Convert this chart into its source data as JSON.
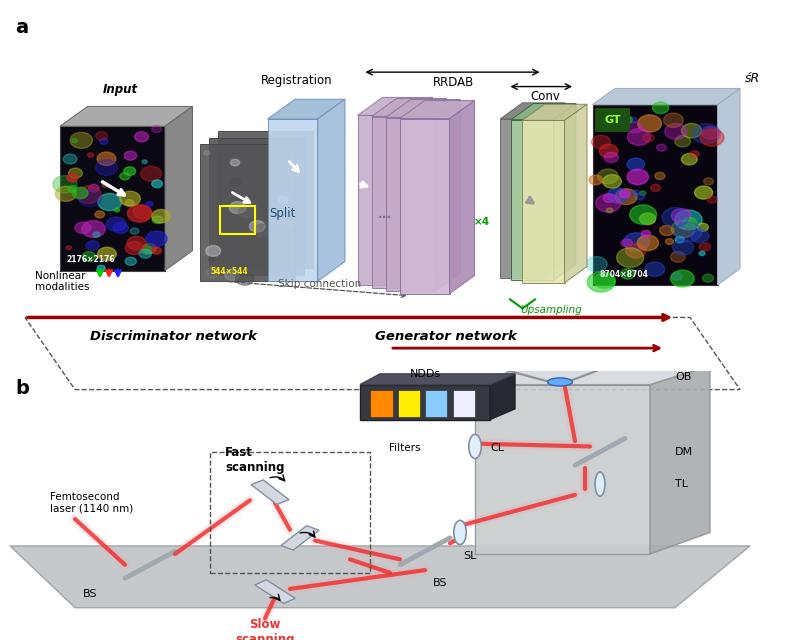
{
  "panel_a_label": "a",
  "panel_b_label": "b",
  "bg_color": "#ffffff",
  "panel_a": {
    "input_label": "Input",
    "input_size": "2176×2176",
    "registration_label": "Registration",
    "rrdab_label": "RRDAB",
    "split_label": "Split",
    "conv_label": "Conv",
    "sr_label": "śR",
    "gt_label": "GT",
    "output_size": "8704×8704",
    "nonlinear_label": "Nonlinear\nmodalities",
    "skip_label": "Skip connection",
    "upsample_label": "Upsampling",
    "discriminator_label": "Discriminator network",
    "generator_label": "Generator network",
    "patch_size": "544×544",
    "x4_label": "×4"
  },
  "panel_b": {
    "ndds_label": "NDDs",
    "ob_label": "OB",
    "dm_label": "DM",
    "tl_label": "TL",
    "filters_label": "Filters",
    "cl_label": "CL",
    "sl_label": "SL",
    "bs_label": "BS",
    "fast_label": "Fast\nscanning",
    "slow_label": "Slow\nscanning",
    "femto_label": "Femtosecond\nlaser (1140 nm)"
  },
  "colors": {
    "input_dark": "#1a1020",
    "gray_mid": "#606060",
    "registration_blue": "#c0d8ee",
    "registration_side": "#a0bcda",
    "rrdab_mauve": "#c8b0cc",
    "rrdab_side": "#b098b8",
    "conv_green": "#a8d0a8",
    "conv_yellow": "#e8e8b8",
    "side_light": "#c8ccd4",
    "side_dark": "#a0a8b4",
    "output_dark": "#10080c",
    "gt_green_bg": "#1a5010",
    "gt_green_text": "#99ff33",
    "sr_side": "#c0ccd8",
    "red_arrow": "#990000",
    "green_upsample": "#009900",
    "skip_dash": "#555555",
    "panel_b_base": "#c0c4c8",
    "microscope_body": "#c8ccce",
    "microscope_side": "#a8acb0",
    "beam_red": "#ee3333",
    "beam_glow": "#ff9999"
  }
}
